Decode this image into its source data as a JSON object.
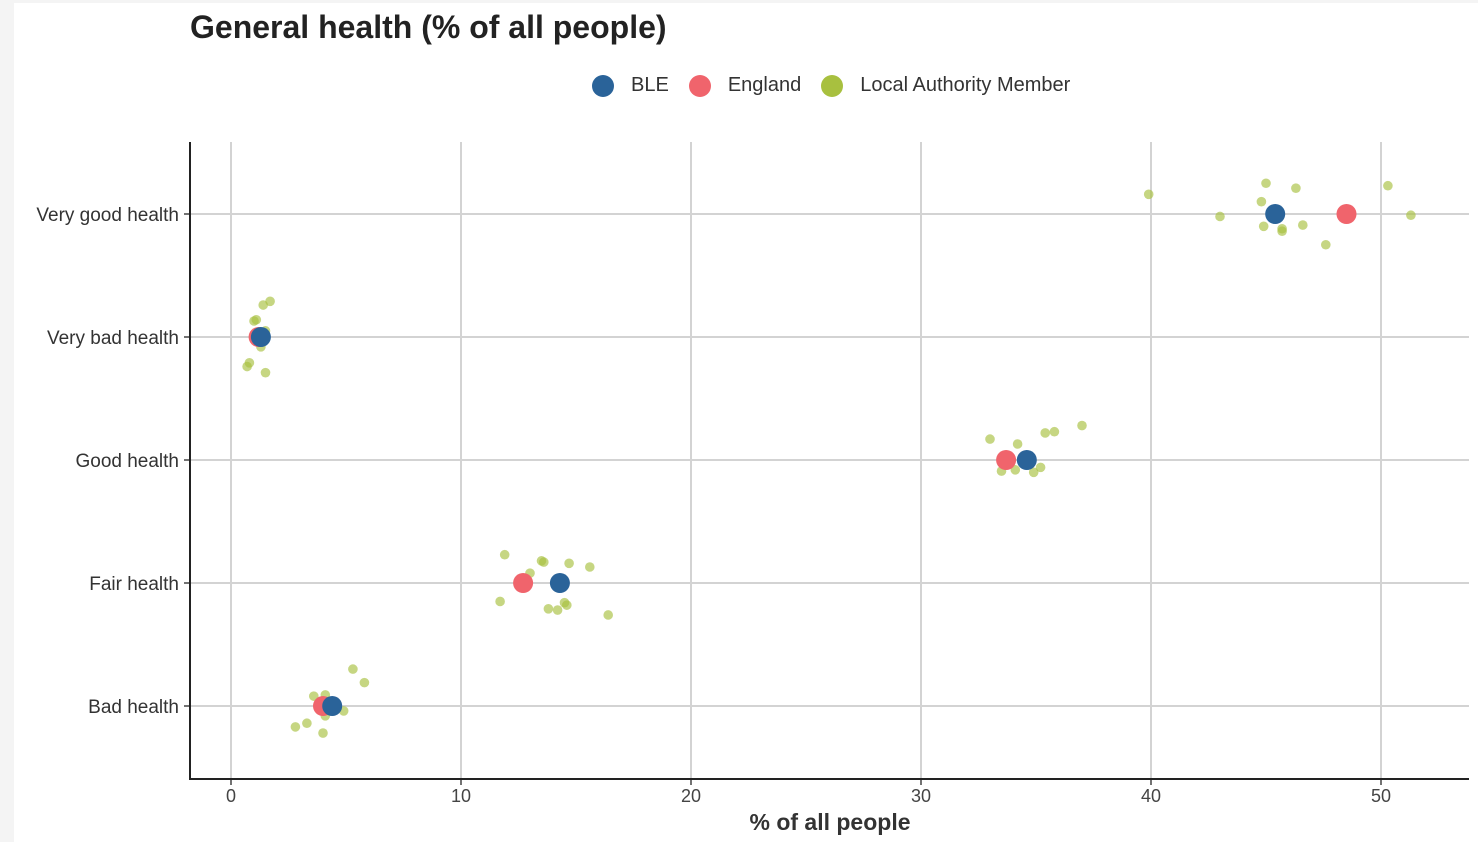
{
  "chart_data": {
    "type": "scatter",
    "title": "General health (% of all people)",
    "xlabel": "% of all people",
    "ylabel": "",
    "xlim": [
      -1.8,
      53.5
    ],
    "xticks": [
      0,
      10,
      20,
      30,
      40,
      50
    ],
    "categories": [
      "Very good health",
      "Very bad health",
      "Good health",
      "Fair health",
      "Bad health"
    ],
    "grid": true,
    "legend_position": "top",
    "series": [
      {
        "name": "Local Authority Member",
        "color": "#a8c03f",
        "points": [
          {
            "category": "Very good health",
            "x": 39.9,
            "jitter": 0.16
          },
          {
            "category": "Very good health",
            "x": 43.0,
            "jitter": -0.02
          },
          {
            "category": "Very good health",
            "x": 45.0,
            "jitter": 0.25
          },
          {
            "category": "Very good health",
            "x": 44.8,
            "jitter": 0.1
          },
          {
            "category": "Very good health",
            "x": 46.3,
            "jitter": 0.21
          },
          {
            "category": "Very good health",
            "x": 44.9,
            "jitter": -0.1
          },
          {
            "category": "Very good health",
            "x": 45.7,
            "jitter": -0.12
          },
          {
            "category": "Very good health",
            "x": 45.7,
            "jitter": -0.14
          },
          {
            "category": "Very good health",
            "x": 46.6,
            "jitter": -0.09
          },
          {
            "category": "Very good health",
            "x": 47.6,
            "jitter": -0.25
          },
          {
            "category": "Very good health",
            "x": 50.3,
            "jitter": 0.23
          },
          {
            "category": "Very good health",
            "x": 51.3,
            "jitter": -0.01
          },
          {
            "category": "Very bad health",
            "x": 1.4,
            "jitter": 0.26
          },
          {
            "category": "Very bad health",
            "x": 1.7,
            "jitter": 0.29
          },
          {
            "category": "Very bad health",
            "x": 1.0,
            "jitter": 0.13
          },
          {
            "category": "Very bad health",
            "x": 1.1,
            "jitter": 0.14
          },
          {
            "category": "Very bad health",
            "x": 1.5,
            "jitter": 0.05
          },
          {
            "category": "Very bad health",
            "x": 1.3,
            "jitter": -0.08
          },
          {
            "category": "Very bad health",
            "x": 0.8,
            "jitter": -0.21
          },
          {
            "category": "Very bad health",
            "x": 0.7,
            "jitter": -0.24
          },
          {
            "category": "Very bad health",
            "x": 1.5,
            "jitter": -0.29
          },
          {
            "category": "Good health",
            "x": 33.0,
            "jitter": 0.17
          },
          {
            "category": "Good health",
            "x": 34.2,
            "jitter": 0.13
          },
          {
            "category": "Good health",
            "x": 35.4,
            "jitter": 0.22
          },
          {
            "category": "Good health",
            "x": 35.8,
            "jitter": 0.23
          },
          {
            "category": "Good health",
            "x": 37.0,
            "jitter": 0.28
          },
          {
            "category": "Good health",
            "x": 33.5,
            "jitter": -0.09
          },
          {
            "category": "Good health",
            "x": 34.1,
            "jitter": -0.08
          },
          {
            "category": "Good health",
            "x": 34.9,
            "jitter": -0.1
          },
          {
            "category": "Good health",
            "x": 35.2,
            "jitter": -0.06
          },
          {
            "category": "Fair health",
            "x": 11.9,
            "jitter": 0.23
          },
          {
            "category": "Fair health",
            "x": 13.5,
            "jitter": 0.18
          },
          {
            "category": "Fair health",
            "x": 13.6,
            "jitter": 0.17
          },
          {
            "category": "Fair health",
            "x": 14.7,
            "jitter": 0.16
          },
          {
            "category": "Fair health",
            "x": 15.6,
            "jitter": 0.13
          },
          {
            "category": "Fair health",
            "x": 13.0,
            "jitter": 0.08
          },
          {
            "category": "Fair health",
            "x": 11.7,
            "jitter": -0.15
          },
          {
            "category": "Fair health",
            "x": 13.8,
            "jitter": -0.21
          },
          {
            "category": "Fair health",
            "x": 14.2,
            "jitter": -0.22
          },
          {
            "category": "Fair health",
            "x": 14.5,
            "jitter": -0.16
          },
          {
            "category": "Fair health",
            "x": 14.6,
            "jitter": -0.18
          },
          {
            "category": "Fair health",
            "x": 16.4,
            "jitter": -0.26
          },
          {
            "category": "Bad health",
            "x": 5.3,
            "jitter": 0.3
          },
          {
            "category": "Bad health",
            "x": 5.8,
            "jitter": 0.19
          },
          {
            "category": "Bad health",
            "x": 3.6,
            "jitter": 0.08
          },
          {
            "category": "Bad health",
            "x": 4.1,
            "jitter": 0.09
          },
          {
            "category": "Bad health",
            "x": 4.9,
            "jitter": -0.04
          },
          {
            "category": "Bad health",
            "x": 4.1,
            "jitter": -0.08
          },
          {
            "category": "Bad health",
            "x": 3.3,
            "jitter": -0.14
          },
          {
            "category": "Bad health",
            "x": 2.8,
            "jitter": -0.17
          },
          {
            "category": "Bad health",
            "x": 4.0,
            "jitter": -0.22
          }
        ]
      },
      {
        "name": "England",
        "color": "#f0646c",
        "points": [
          {
            "category": "Very good health",
            "x": 48.5
          },
          {
            "category": "Very bad health",
            "x": 1.2
          },
          {
            "category": "Good health",
            "x": 33.7
          },
          {
            "category": "Fair health",
            "x": 12.7
          },
          {
            "category": "Bad health",
            "x": 4.0
          }
        ]
      },
      {
        "name": "BLE",
        "color": "#2a6399",
        "points": [
          {
            "category": "Very good health",
            "x": 45.4
          },
          {
            "category": "Very bad health",
            "x": 1.3
          },
          {
            "category": "Good health",
            "x": 34.6
          },
          {
            "category": "Fair health",
            "x": 14.3
          },
          {
            "category": "Bad health",
            "x": 4.4
          }
        ]
      }
    ],
    "legend": [
      {
        "name": "BLE",
        "color": "#2a6399"
      },
      {
        "name": "England",
        "color": "#f0646c"
      },
      {
        "name": "Local Authority Member",
        "color": "#a8c03f"
      }
    ]
  }
}
